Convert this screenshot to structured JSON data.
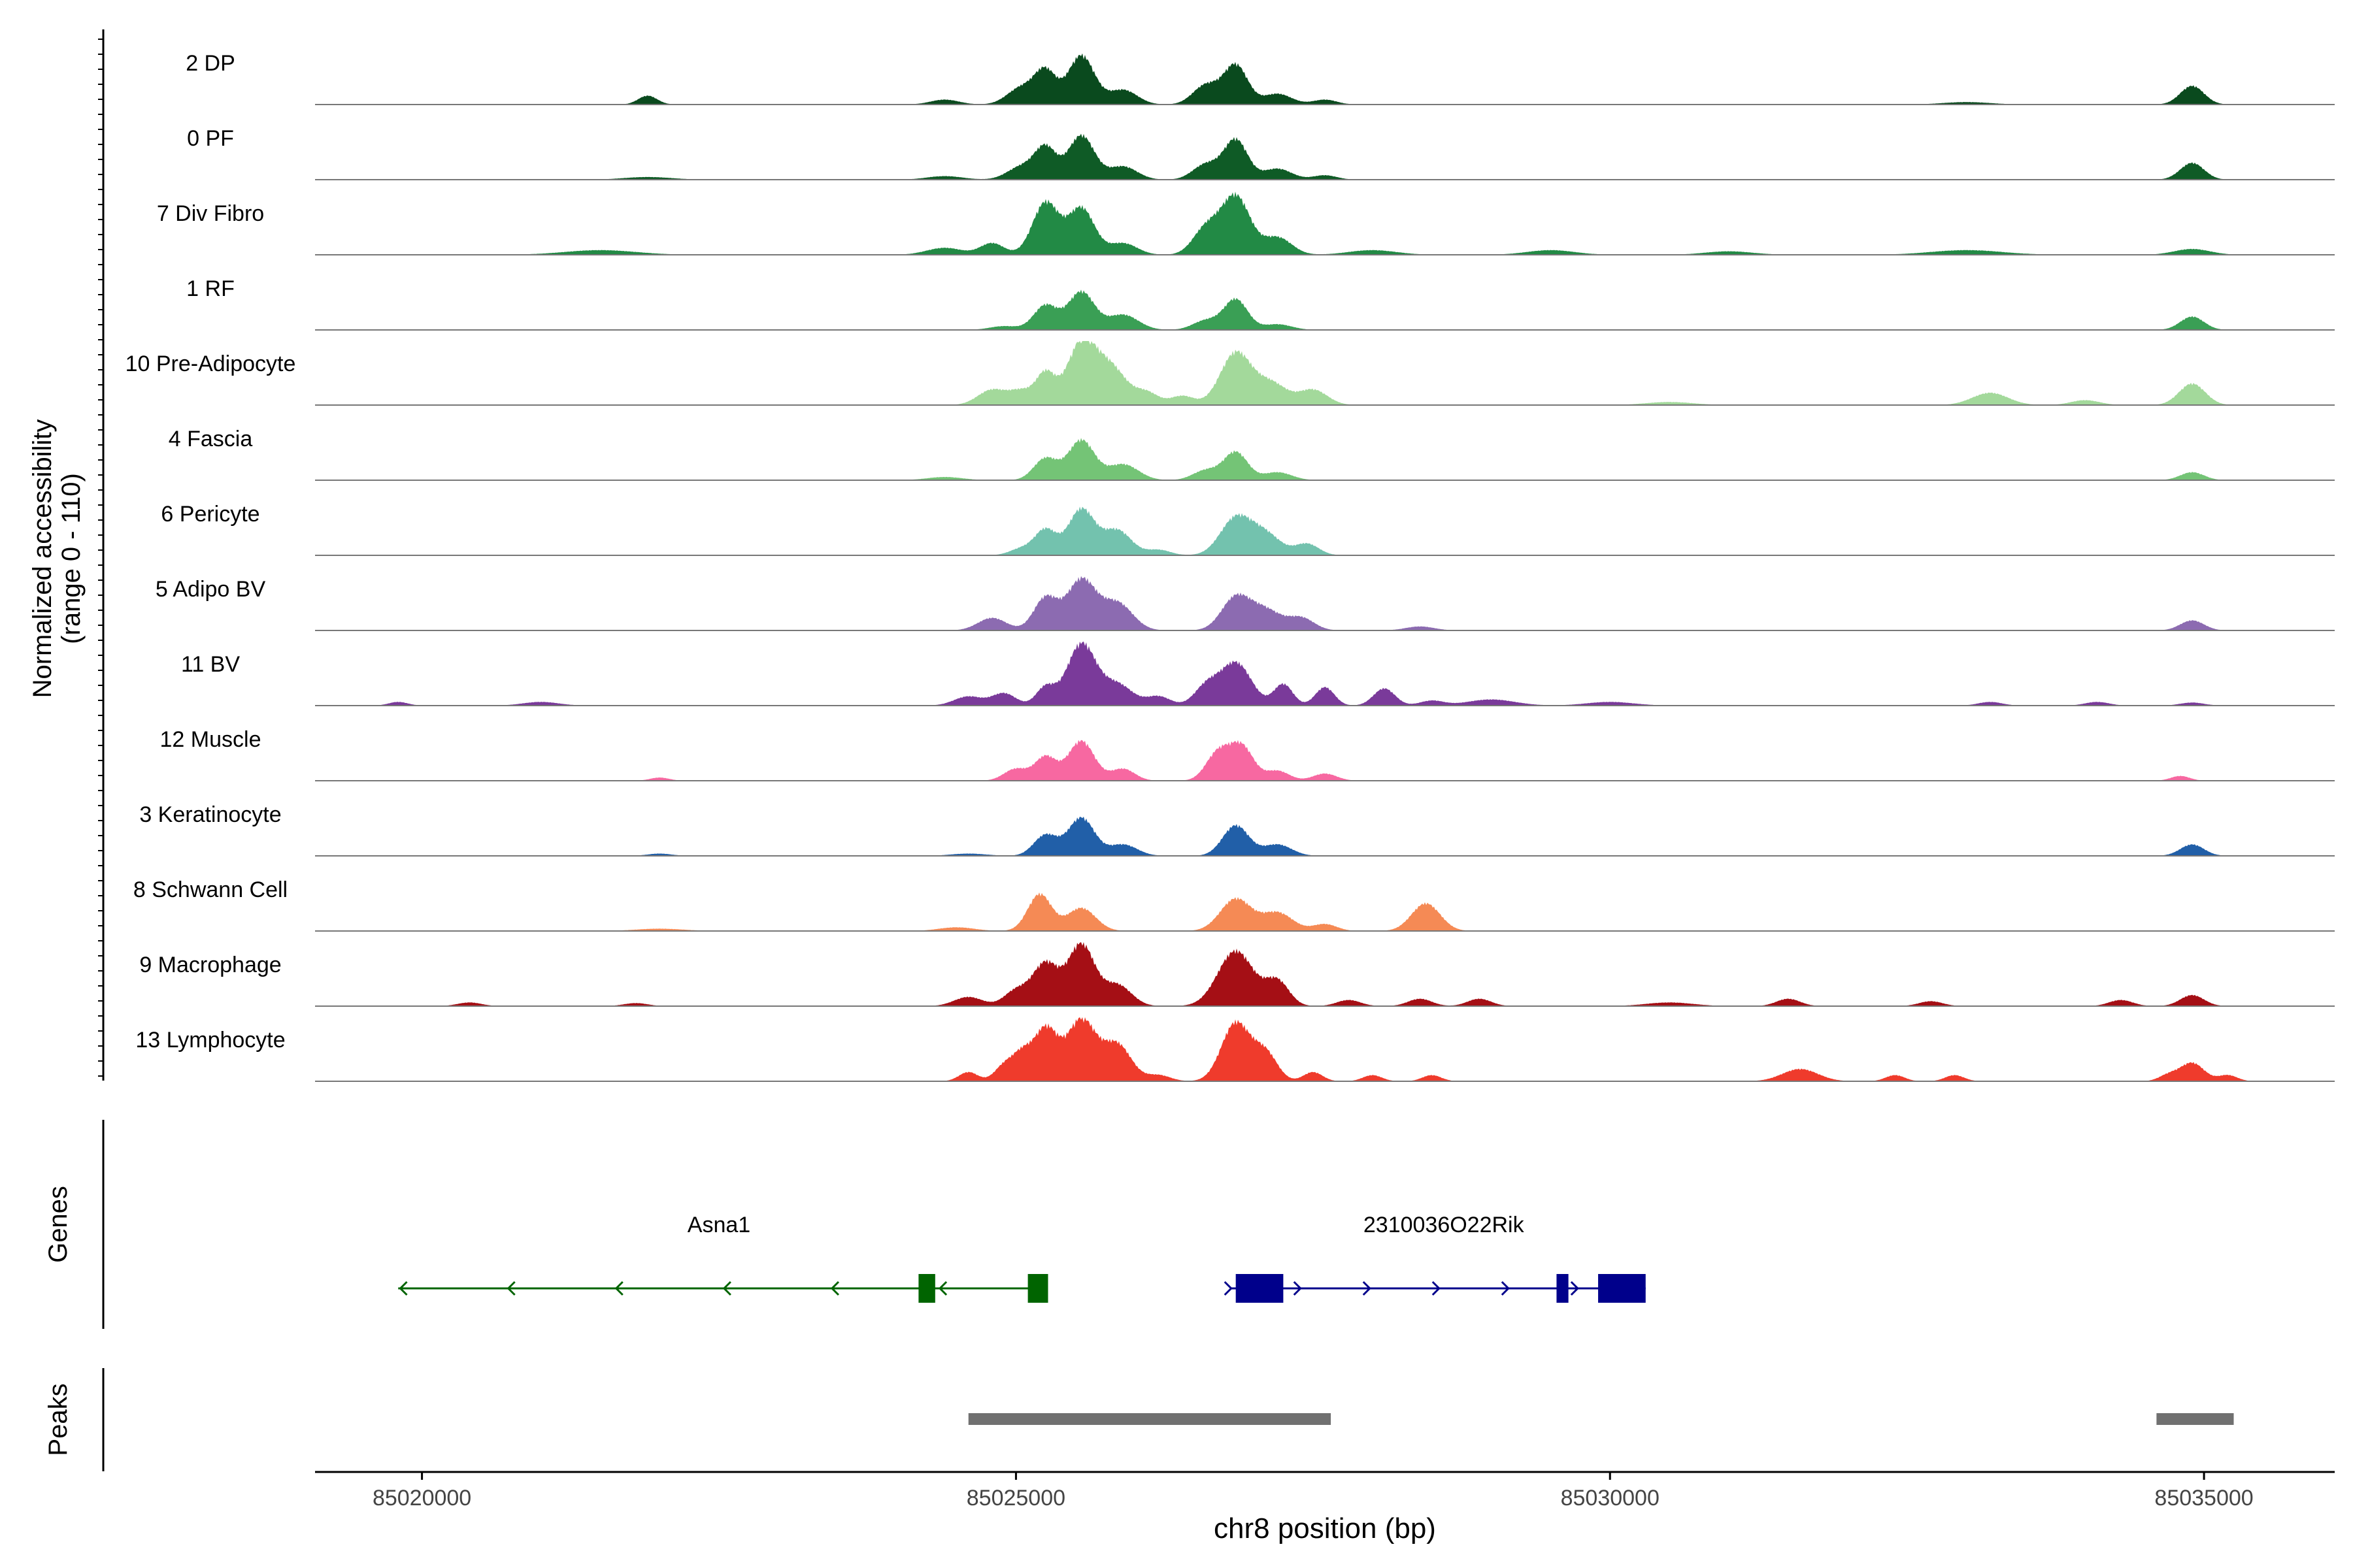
{
  "chart_data": {
    "type": "area",
    "subtype": "coverage-tracks",
    "y_axis_label": [
      "Normalized accessibility",
      "(range 0 - 110)"
    ],
    "y_range": [
      0,
      110
    ],
    "x_axis_label": "chr8 position (bp)",
    "x_range": [
      85019100,
      85036100
    ],
    "x_ticks": [
      85020000,
      85025000,
      85030000,
      85035000
    ],
    "x_tick_labels": [
      "85020000",
      "85025000",
      "85030000",
      "85035000"
    ],
    "tracks": [
      {
        "name": "2 DP",
        "color": "#0a4a1e",
        "scale": 0.8,
        "peaks": [
          [
            85021900,
            0.18,
            80
          ],
          [
            85024400,
            0.1,
            120
          ],
          [
            85025050,
            0.35,
            120
          ],
          [
            85025250,
            0.65,
            90
          ],
          [
            85025550,
            1.0,
            110
          ],
          [
            85025900,
            0.3,
            120
          ],
          [
            85026600,
            0.4,
            110
          ],
          [
            85026850,
            0.8,
            100
          ],
          [
            85027200,
            0.22,
            120
          ],
          [
            85027600,
            0.1,
            100
          ],
          [
            85033000,
            0.05,
            200
          ],
          [
            85034900,
            0.38,
            100
          ]
        ]
      },
      {
        "name": "0 PF",
        "color": "#0f5b26",
        "scale": 0.72,
        "peaks": [
          [
            85021900,
            0.06,
            200
          ],
          [
            85024400,
            0.08,
            150
          ],
          [
            85025050,
            0.3,
            120
          ],
          [
            85025250,
            0.7,
            90
          ],
          [
            85025550,
            1.0,
            110
          ],
          [
            85025900,
            0.3,
            120
          ],
          [
            85026600,
            0.35,
            110
          ],
          [
            85026850,
            0.9,
            100
          ],
          [
            85027200,
            0.25,
            120
          ],
          [
            85027600,
            0.1,
            100
          ],
          [
            85034900,
            0.38,
            100
          ]
        ]
      },
      {
        "name": "7 Div Fibro",
        "color": "#228a45",
        "scale": 0.95,
        "peaks": [
          [
            85021500,
            0.08,
            300
          ],
          [
            85024400,
            0.12,
            150
          ],
          [
            85024800,
            0.2,
            100
          ],
          [
            85025250,
            0.9,
            110
          ],
          [
            85025550,
            0.8,
            110
          ],
          [
            85025900,
            0.2,
            120
          ],
          [
            85026600,
            0.45,
            110
          ],
          [
            85026850,
            1.0,
            120
          ],
          [
            85027200,
            0.3,
            120
          ],
          [
            85028000,
            0.08,
            200
          ],
          [
            85029500,
            0.08,
            200
          ],
          [
            85031000,
            0.06,
            200
          ],
          [
            85033000,
            0.08,
            300
          ],
          [
            85034900,
            0.1,
            150
          ]
        ]
      },
      {
        "name": "1 RF",
        "color": "#3a9f55",
        "scale": 0.62,
        "peaks": [
          [
            85024900,
            0.1,
            120
          ],
          [
            85025250,
            0.65,
            100
          ],
          [
            85025550,
            1.0,
            110
          ],
          [
            85025900,
            0.4,
            130
          ],
          [
            85026600,
            0.25,
            110
          ],
          [
            85026850,
            0.8,
            100
          ],
          [
            85027200,
            0.15,
            120
          ],
          [
            85034900,
            0.35,
            100
          ]
        ]
      },
      {
        "name": "10 Pre-Adipocyte",
        "color": "#a3d99b",
        "scale": 1.0,
        "peaks": [
          [
            85024800,
            0.25,
            120
          ],
          [
            85025050,
            0.22,
            100
          ],
          [
            85025250,
            0.5,
            80
          ],
          [
            85025550,
            1.0,
            120
          ],
          [
            85025800,
            0.6,
            130
          ],
          [
            85026100,
            0.2,
            100
          ],
          [
            85026400,
            0.15,
            100
          ],
          [
            85026850,
            0.85,
            130
          ],
          [
            85027150,
            0.35,
            130
          ],
          [
            85027500,
            0.25,
            120
          ],
          [
            85030500,
            0.05,
            200
          ],
          [
            85033200,
            0.2,
            150
          ],
          [
            85034000,
            0.08,
            120
          ],
          [
            85034900,
            0.35,
            110
          ]
        ]
      },
      {
        "name": "4 Fascia",
        "color": "#74c476",
        "scale": 0.65,
        "peaks": [
          [
            85024400,
            0.08,
            150
          ],
          [
            85025250,
            0.55,
            100
          ],
          [
            85025550,
            1.0,
            110
          ],
          [
            85025900,
            0.4,
            130
          ],
          [
            85026600,
            0.25,
            110
          ],
          [
            85026850,
            0.7,
            100
          ],
          [
            85027200,
            0.2,
            120
          ],
          [
            85034900,
            0.2,
            100
          ]
        ]
      },
      {
        "name": "6 Pericyte",
        "color": "#73c2ae",
        "scale": 0.75,
        "peaks": [
          [
            85025050,
            0.15,
            100
          ],
          [
            85025250,
            0.55,
            90
          ],
          [
            85025550,
            1.0,
            110
          ],
          [
            85025850,
            0.55,
            120
          ],
          [
            85026200,
            0.12,
            100
          ],
          [
            85026850,
            0.8,
            130
          ],
          [
            85027100,
            0.45,
            130
          ],
          [
            85027450,
            0.25,
            100
          ]
        ]
      },
      {
        "name": "5 Adipo BV",
        "color": "#8c6bb1",
        "scale": 0.82,
        "peaks": [
          [
            85024800,
            0.25,
            120
          ],
          [
            85025250,
            0.65,
            100
          ],
          [
            85025550,
            1.0,
            120
          ],
          [
            85025850,
            0.55,
            130
          ],
          [
            85026850,
            0.65,
            120
          ],
          [
            85027100,
            0.4,
            130
          ],
          [
            85027400,
            0.25,
            110
          ],
          [
            85028400,
            0.08,
            120
          ],
          [
            85034900,
            0.2,
            100
          ]
        ]
      },
      {
        "name": "11 BV",
        "color": "#7a3a9a",
        "scale": 1.0,
        "peaks": [
          [
            85019800,
            0.06,
            80
          ],
          [
            85021000,
            0.06,
            150
          ],
          [
            85024600,
            0.15,
            120
          ],
          [
            85024900,
            0.2,
            100
          ],
          [
            85025250,
            0.3,
            80
          ],
          [
            85025550,
            1.0,
            120
          ],
          [
            85025850,
            0.35,
            130
          ],
          [
            85026200,
            0.15,
            100
          ],
          [
            85026600,
            0.3,
            100
          ],
          [
            85026850,
            0.7,
            130
          ],
          [
            85027250,
            0.35,
            80
          ],
          [
            85027600,
            0.3,
            80
          ],
          [
            85028100,
            0.28,
            90
          ],
          [
            85028500,
            0.08,
            100
          ],
          [
            85029000,
            0.1,
            200
          ],
          [
            85030000,
            0.06,
            200
          ],
          [
            85033200,
            0.06,
            100
          ],
          [
            85034100,
            0.06,
            100
          ],
          [
            85034900,
            0.05,
            100
          ]
        ]
      },
      {
        "name": "12 Muscle",
        "color": "#f768a1",
        "scale": 0.65,
        "peaks": [
          [
            85022000,
            0.08,
            80
          ],
          [
            85025000,
            0.3,
            100
          ],
          [
            85025250,
            0.6,
            90
          ],
          [
            85025550,
            1.0,
            110
          ],
          [
            85025900,
            0.3,
            100
          ],
          [
            85026700,
            0.7,
            100
          ],
          [
            85026900,
            0.85,
            100
          ],
          [
            85027200,
            0.25,
            100
          ],
          [
            85027600,
            0.18,
            100
          ],
          [
            85034800,
            0.12,
            80
          ]
        ]
      },
      {
        "name": "3 Keratinocyte",
        "color": "#215fa8",
        "scale": 0.62,
        "peaks": [
          [
            85022000,
            0.06,
            100
          ],
          [
            85024600,
            0.06,
            150
          ],
          [
            85025250,
            0.55,
            100
          ],
          [
            85025550,
            1.0,
            110
          ],
          [
            85025900,
            0.3,
            120
          ],
          [
            85026850,
            0.8,
            110
          ],
          [
            85027200,
            0.3,
            120
          ],
          [
            85034900,
            0.3,
            100
          ]
        ]
      },
      {
        "name": "8 Schwann Cell",
        "color": "#f58a55",
        "scale": 0.75,
        "peaks": [
          [
            85022000,
            0.05,
            200
          ],
          [
            85024500,
            0.08,
            150
          ],
          [
            85025200,
            0.8,
            100
          ],
          [
            85025550,
            0.5,
            120
          ],
          [
            85026850,
            0.7,
            130
          ],
          [
            85027200,
            0.4,
            130
          ],
          [
            85027600,
            0.15,
            100
          ],
          [
            85028450,
            0.6,
            120
          ]
        ]
      },
      {
        "name": "9 Macrophage",
        "color": "#a50f15",
        "scale": 1.0,
        "peaks": [
          [
            85020400,
            0.06,
            100
          ],
          [
            85021800,
            0.05,
            100
          ],
          [
            85024600,
            0.15,
            120
          ],
          [
            85025000,
            0.25,
            100
          ],
          [
            85025250,
            0.7,
            110
          ],
          [
            85025550,
            1.0,
            110
          ],
          [
            85025850,
            0.35,
            120
          ],
          [
            85026850,
            0.9,
            150
          ],
          [
            85027200,
            0.4,
            100
          ],
          [
            85027800,
            0.1,
            100
          ],
          [
            85028400,
            0.12,
            100
          ],
          [
            85028900,
            0.12,
            100
          ],
          [
            85030500,
            0.06,
            200
          ],
          [
            85031500,
            0.12,
            100
          ],
          [
            85032700,
            0.08,
            100
          ],
          [
            85034300,
            0.1,
            100
          ],
          [
            85034900,
            0.18,
            100
          ]
        ]
      },
      {
        "name": "13 Lymphocyte",
        "color": "#ef3b2c",
        "scale": 1.0,
        "peaks": [
          [
            85024600,
            0.15,
            80
          ],
          [
            85024900,
            0.25,
            80
          ],
          [
            85025050,
            0.4,
            80
          ],
          [
            85025250,
            0.85,
            100
          ],
          [
            85025550,
            1.0,
            120
          ],
          [
            85025850,
            0.6,
            120
          ],
          [
            85026200,
            0.1,
            100
          ],
          [
            85026850,
            0.95,
            120
          ],
          [
            85027100,
            0.45,
            100
          ],
          [
            85027500,
            0.15,
            80
          ],
          [
            85028000,
            0.1,
            80
          ],
          [
            85028500,
            0.1,
            80
          ],
          [
            85031600,
            0.2,
            150
          ],
          [
            85032400,
            0.1,
            80
          ],
          [
            85032900,
            0.1,
            80
          ],
          [
            85034700,
            0.1,
            80
          ],
          [
            85034900,
            0.3,
            100
          ],
          [
            85035200,
            0.1,
            80
          ]
        ]
      }
    ],
    "genes_label": "Genes",
    "genes": [
      {
        "name": "Asna1",
        "strand": "-",
        "color": "#006400",
        "start": 85019800,
        "end": 85025250,
        "exons": [
          [
            85024180,
            85024320
          ],
          [
            85025100,
            85025270
          ]
        ],
        "label_at": 85022500
      },
      {
        "name": "2310036O22Rik",
        "strand": "+",
        "color": "#00008b",
        "start": 85026800,
        "end": 85030300,
        "exons": [
          [
            85026850,
            85027250
          ],
          [
            85029550,
            85029650
          ],
          [
            85029900,
            85030300
          ]
        ],
        "label_at": 85028600
      }
    ],
    "peaks_label": "Peaks",
    "peak_regions": [
      [
        85024600,
        85027650
      ],
      [
        85034600,
        85035250
      ]
    ],
    "peak_color": "#707070"
  }
}
